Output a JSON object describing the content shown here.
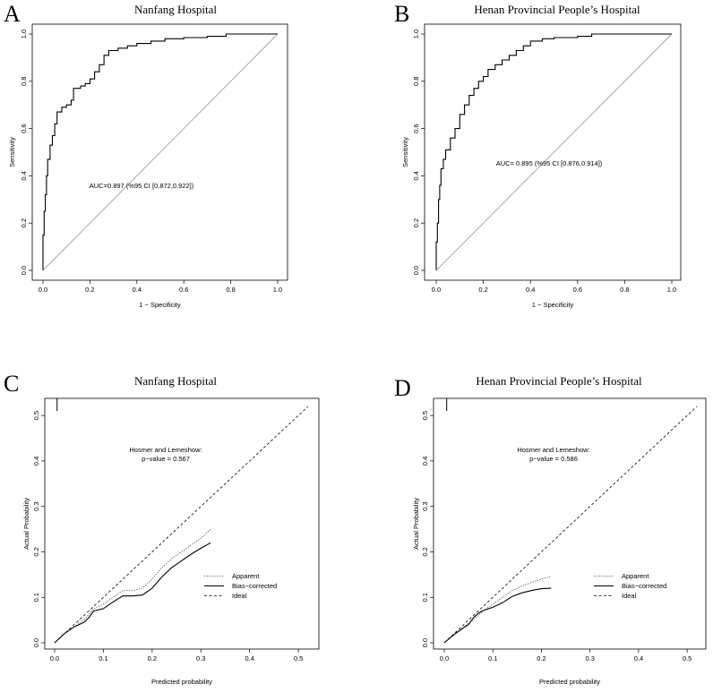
{
  "figure_description_labels": [
    "A",
    "B",
    "C",
    "D"
  ],
  "chart_data": [
    {
      "type": "line",
      "panel": "A",
      "title": "Nanfang Hospital",
      "xlabel": "1 − Specificity",
      "ylabel": "Sensitivity",
      "xlim": [
        0,
        1
      ],
      "ylim": [
        0,
        1
      ],
      "xticks": [
        "0.0",
        "0.2",
        "0.4",
        "0.6",
        "0.8",
        "1.0"
      ],
      "yticks": [
        "0.0",
        "0.2",
        "0.4",
        "0.6",
        "0.8",
        "1.0"
      ],
      "annotation": "AUC=0.897 (%95 CI [0.872,0.922])",
      "series": [
        {
          "name": "ROC",
          "style": "step",
          "x": [
            0,
            0,
            0.005,
            0.005,
            0.01,
            0.01,
            0.015,
            0.015,
            0.02,
            0.02,
            0.03,
            0.03,
            0.04,
            0.04,
            0.05,
            0.05,
            0.06,
            0.06,
            0.08,
            0.08,
            0.1,
            0.1,
            0.12,
            0.12,
            0.13,
            0.13,
            0.16,
            0.16,
            0.18,
            0.18,
            0.2,
            0.2,
            0.22,
            0.22,
            0.24,
            0.24,
            0.26,
            0.26,
            0.28,
            0.28,
            0.32,
            0.32,
            0.36,
            0.36,
            0.4,
            0.4,
            0.46,
            0.46,
            0.52,
            0.52,
            0.6,
            0.6,
            0.7,
            0.7,
            0.78,
            0.78,
            1.0
          ],
          "y": [
            0,
            0.15,
            0.15,
            0.25,
            0.25,
            0.32,
            0.32,
            0.4,
            0.4,
            0.47,
            0.47,
            0.53,
            0.53,
            0.57,
            0.57,
            0.62,
            0.62,
            0.67,
            0.67,
            0.69,
            0.69,
            0.7,
            0.7,
            0.72,
            0.72,
            0.77,
            0.77,
            0.78,
            0.78,
            0.79,
            0.79,
            0.81,
            0.81,
            0.84,
            0.84,
            0.87,
            0.87,
            0.91,
            0.91,
            0.93,
            0.93,
            0.94,
            0.94,
            0.95,
            0.95,
            0.96,
            0.96,
            0.97,
            0.97,
            0.98,
            0.98,
            0.985,
            0.985,
            0.99,
            0.99,
            1.0,
            1.0
          ]
        },
        {
          "name": "reference",
          "style": "diagonal",
          "x": [
            0,
            1
          ],
          "y": [
            0,
            1
          ]
        }
      ]
    },
    {
      "type": "line",
      "panel": "B",
      "title": "Henan Provincial People’s Hospital",
      "xlabel": "1 − Specificity",
      "ylabel": "Sensitivity",
      "xlim": [
        0,
        1
      ],
      "ylim": [
        0,
        1
      ],
      "xticks": [
        "0.0",
        "0.2",
        "0.4",
        "0.6",
        "0.8",
        "1.0"
      ],
      "yticks": [
        "0.0",
        "0.2",
        "0.4",
        "0.6",
        "0.8",
        "1.0"
      ],
      "annotation": "AUC= 0.895 (%95 CI [0.876,0.914])",
      "series": [
        {
          "name": "ROC",
          "style": "step",
          "x": [
            0,
            0,
            0.005,
            0.005,
            0.01,
            0.01,
            0.015,
            0.015,
            0.02,
            0.02,
            0.03,
            0.03,
            0.04,
            0.04,
            0.06,
            0.06,
            0.08,
            0.08,
            0.1,
            0.1,
            0.12,
            0.12,
            0.14,
            0.14,
            0.16,
            0.16,
            0.18,
            0.18,
            0.2,
            0.2,
            0.22,
            0.22,
            0.25,
            0.25,
            0.28,
            0.28,
            0.31,
            0.31,
            0.34,
            0.34,
            0.37,
            0.37,
            0.4,
            0.4,
            0.45,
            0.45,
            0.5,
            0.5,
            0.6,
            0.6,
            0.66,
            0.66,
            1.0
          ],
          "y": [
            0,
            0.12,
            0.12,
            0.2,
            0.2,
            0.3,
            0.3,
            0.36,
            0.36,
            0.43,
            0.43,
            0.47,
            0.47,
            0.51,
            0.51,
            0.56,
            0.56,
            0.6,
            0.6,
            0.66,
            0.66,
            0.7,
            0.7,
            0.74,
            0.74,
            0.77,
            0.77,
            0.8,
            0.8,
            0.82,
            0.82,
            0.85,
            0.85,
            0.87,
            0.87,
            0.89,
            0.89,
            0.91,
            0.91,
            0.93,
            0.93,
            0.95,
            0.95,
            0.97,
            0.97,
            0.98,
            0.98,
            0.985,
            0.985,
            0.99,
            0.99,
            1.0,
            1.0
          ]
        },
        {
          "name": "reference",
          "style": "diagonal",
          "x": [
            0,
            1
          ],
          "y": [
            0,
            1
          ]
        }
      ]
    },
    {
      "type": "line",
      "panel": "C",
      "title": "Nanfang Hospital",
      "xlabel": "Predicted probability",
      "ylabel": "Actual Probability",
      "xlim": [
        0,
        0.52
      ],
      "ylim": [
        0,
        0.52
      ],
      "xticks": [
        "0.0",
        "0.1",
        "0.2",
        "0.3",
        "0.4",
        "0.5"
      ],
      "yticks": [
        "0.0",
        "0.1",
        "0.2",
        "0.3",
        "0.4",
        "0.5"
      ],
      "annotation_lines": [
        "Hosmer and Lemeshow:",
        "p−value = 0.567"
      ],
      "rug_x": 0.005,
      "series": [
        {
          "name": "Apparent",
          "style": "dotted",
          "x": [
            0.0,
            0.02,
            0.04,
            0.06,
            0.08,
            0.1,
            0.12,
            0.14,
            0.16,
            0.18,
            0.2,
            0.22,
            0.24,
            0.26,
            0.28,
            0.3,
            0.32
          ],
          "y": [
            0.0,
            0.02,
            0.035,
            0.05,
            0.075,
            0.085,
            0.1,
            0.115,
            0.115,
            0.12,
            0.14,
            0.165,
            0.185,
            0.2,
            0.215,
            0.23,
            0.25
          ]
        },
        {
          "name": "Bias−corrected",
          "style": "solid",
          "x": [
            0.0,
            0.02,
            0.04,
            0.06,
            0.07,
            0.08,
            0.1,
            0.12,
            0.14,
            0.16,
            0.18,
            0.2,
            0.22,
            0.24,
            0.26,
            0.28,
            0.3,
            0.32
          ],
          "y": [
            0.0,
            0.02,
            0.035,
            0.045,
            0.055,
            0.07,
            0.075,
            0.09,
            0.103,
            0.103,
            0.105,
            0.12,
            0.145,
            0.165,
            0.18,
            0.195,
            0.208,
            0.22
          ]
        },
        {
          "name": "Ideal",
          "style": "dashed",
          "x": [
            0,
            0.52
          ],
          "y": [
            0,
            0.52
          ]
        }
      ],
      "legend": [
        "Apparent",
        "Bias−corrected",
        "Ideal"
      ]
    },
    {
      "type": "line",
      "panel": "D",
      "title": "Henan Provincial People’s Hospital",
      "xlabel": "Predicted probability",
      "ylabel": "Actual Probability",
      "xlim": [
        0,
        0.52
      ],
      "ylim": [
        0,
        0.52
      ],
      "xticks": [
        "0.0",
        "0.1",
        "0.2",
        "0.3",
        "0.4",
        "0.5"
      ],
      "yticks": [
        "0.0",
        "0.1",
        "0.2",
        "0.3",
        "0.4",
        "0.5"
      ],
      "annotation_lines": [
        "Hosmer and Lemeshow:",
        "p−value = 0.586"
      ],
      "rug_x": 0.005,
      "series": [
        {
          "name": "Apparent",
          "style": "dotted",
          "x": [
            0.0,
            0.02,
            0.04,
            0.06,
            0.08,
            0.1,
            0.12,
            0.14,
            0.16,
            0.18,
            0.2,
            0.22
          ],
          "y": [
            0.0,
            0.018,
            0.035,
            0.05,
            0.07,
            0.085,
            0.1,
            0.115,
            0.125,
            0.133,
            0.14,
            0.146
          ]
        },
        {
          "name": "Bias−corrected",
          "style": "solid",
          "x": [
            0.0,
            0.02,
            0.04,
            0.05,
            0.06,
            0.07,
            0.08,
            0.1,
            0.12,
            0.14,
            0.16,
            0.18,
            0.2,
            0.22
          ],
          "y": [
            0.0,
            0.018,
            0.033,
            0.04,
            0.055,
            0.065,
            0.071,
            0.078,
            0.088,
            0.102,
            0.11,
            0.115,
            0.119,
            0.12
          ]
        },
        {
          "name": "Ideal",
          "style": "dashed",
          "x": [
            0,
            0.52
          ],
          "y": [
            0,
            0.52
          ]
        }
      ],
      "legend": [
        "Apparent",
        "Bias−corrected",
        "Ideal"
      ]
    }
  ]
}
